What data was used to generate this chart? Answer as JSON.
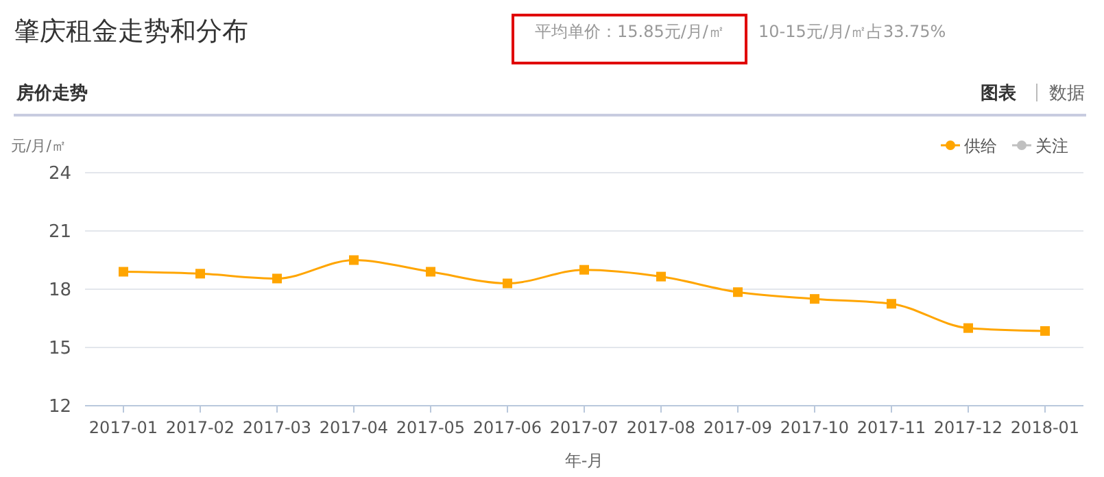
{
  "chart_data": {
    "type": "line",
    "title": "肇庆租金走势和分布",
    "subtitle": "平均单价：15.85元/月/㎡",
    "annotations": [
      "10-15元/月/㎡占33.75%",
      "房价走势",
      "图表",
      "数据"
    ],
    "ylabel": "元/月/㎡",
    "xlabel": "年-月",
    "categories": [
      "2017-01",
      "2017-02",
      "2017-03",
      "2017-04",
      "2017-05",
      "2017-06",
      "2017-07",
      "2017-08",
      "2017-09",
      "2017-10",
      "2017-11",
      "2017-12",
      "2018-01"
    ],
    "series": [
      {
        "name": "供给",
        "color": "#ffa500",
        "values": [
          18.9,
          18.8,
          18.55,
          19.5,
          18.9,
          18.3,
          19.0,
          18.65,
          17.85,
          17.5,
          17.25,
          16.0,
          15.85
        ]
      },
      {
        "name": "关注",
        "color": "#c0c0c0",
        "values": [
          null,
          null,
          null,
          null,
          null,
          null,
          null,
          null,
          null,
          null,
          null,
          null,
          null
        ]
      }
    ],
    "ylim": [
      12,
      24
    ],
    "yticks": [
      12,
      15,
      18,
      21,
      24
    ],
    "grid": "y",
    "legend": "top right",
    "marker": "square",
    "line_style": "solid"
  }
}
